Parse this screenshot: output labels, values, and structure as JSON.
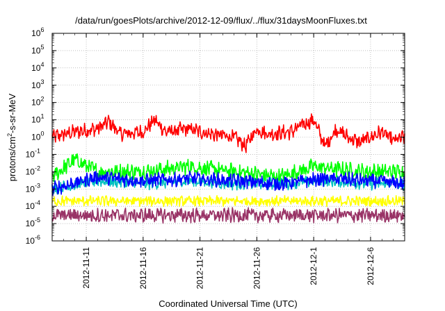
{
  "chart_data": {
    "type": "line",
    "title": "/data/run/goesPlots/archive/2012-12-09/flux/../flux/31daysMoonFluxes.txt",
    "xlabel": "Coordinated Universal Time (UTC)",
    "ylabel_base": "protons/cm",
    "ylabel_exp": "2",
    "ylabel_rest": "-s-sr-MeV",
    "yscale": "log",
    "ylim": [
      1e-06,
      1000000.0
    ],
    "y_base": "10",
    "y_exponents": [
      "-6",
      "-5",
      "-4",
      "-3",
      "-2",
      "-1",
      "0",
      "1",
      "2",
      "3",
      "4",
      "5",
      "6"
    ],
    "x_range": [
      "2012-11-08",
      "2012-12-09"
    ],
    "x_ticks": [
      "2012-11-11",
      "2012-11-16",
      "2012-11-21",
      "2012-11-26",
      "2012-12-1",
      "2012-12-6"
    ],
    "grid": true,
    "series": [
      {
        "color": "#ff0000",
        "base_log": 0.2,
        "amp": 0.45,
        "noise": 0.35,
        "points": [
          [
            "2012-11-08",
            1.0
          ],
          [
            "2012-11-10",
            2.0
          ],
          [
            "2012-11-12",
            3.0
          ],
          [
            "2012-11-13",
            8.0
          ],
          [
            "2012-11-14",
            1.5
          ],
          [
            "2012-11-16",
            2.0
          ],
          [
            "2012-11-17",
            10.0
          ],
          [
            "2012-11-18",
            2.0
          ],
          [
            "2012-11-20",
            3.0
          ],
          [
            "2012-11-22",
            1.5
          ],
          [
            "2012-11-24",
            1.0
          ],
          [
            "2012-11-25",
            0.3
          ],
          [
            "2012-11-26",
            3.0
          ],
          [
            "2012-11-27",
            1.5
          ],
          [
            "2012-11-29",
            2.0
          ],
          [
            "2012-11-30",
            5.0
          ],
          [
            "2012-12-01",
            10.0
          ],
          [
            "2012-12-02",
            0.3
          ],
          [
            "2012-12-03",
            3.0
          ],
          [
            "2012-12-04",
            1.0
          ],
          [
            "2012-12-05",
            0.5
          ],
          [
            "2012-12-06",
            1.0
          ],
          [
            "2012-12-07",
            2.0
          ],
          [
            "2012-12-08",
            0.6
          ],
          [
            "2012-12-09",
            1.0
          ]
        ]
      },
      {
        "color": "#00ff00",
        "base_log": -1.9,
        "amp": 0.4,
        "noise": 0.4,
        "points": [
          [
            "2012-11-08",
            0.005
          ],
          [
            "2012-11-10",
            0.05
          ],
          [
            "2012-11-12",
            0.01
          ],
          [
            "2012-11-16",
            0.01
          ],
          [
            "2012-11-20",
            0.02
          ],
          [
            "2012-11-24",
            0.01
          ],
          [
            "2012-11-28",
            0.005
          ],
          [
            "2012-12-01",
            0.02
          ],
          [
            "2012-12-05",
            0.01
          ],
          [
            "2012-12-09",
            0.01
          ]
        ]
      },
      {
        "color": "#00c0c0",
        "base_log": -2.6,
        "amp": 0.3,
        "noise": 0.3,
        "points": [
          [
            "2012-11-08",
            0.001
          ],
          [
            "2012-11-12",
            0.003
          ],
          [
            "2012-11-16",
            0.002
          ],
          [
            "2012-11-20",
            0.003
          ],
          [
            "2012-11-24",
            0.002
          ],
          [
            "2012-11-28",
            0.002
          ],
          [
            "2012-12-02",
            0.003
          ],
          [
            "2012-12-06",
            0.002
          ],
          [
            "2012-12-09",
            0.002
          ]
        ]
      },
      {
        "color": "#0000ff",
        "base_log": -2.4,
        "amp": 0.35,
        "noise": 0.35,
        "points": [
          [
            "2012-11-08",
            0.001
          ],
          [
            "2012-11-12",
            0.005
          ],
          [
            "2012-11-16",
            0.003
          ],
          [
            "2012-11-20",
            0.004
          ],
          [
            "2012-11-24",
            0.003
          ],
          [
            "2012-11-28",
            0.002
          ],
          [
            "2012-12-02",
            0.004
          ],
          [
            "2012-12-06",
            0.003
          ],
          [
            "2012-12-09",
            0.002
          ]
        ]
      },
      {
        "color": "#ffff00",
        "base_log": -3.7,
        "amp": 0.25,
        "noise": 0.25,
        "points": [
          [
            "2012-11-08",
            0.0002
          ],
          [
            "2012-11-14",
            0.0002
          ],
          [
            "2012-11-20",
            0.0002
          ],
          [
            "2012-11-26",
            0.0002
          ],
          [
            "2012-12-02",
            0.0002
          ],
          [
            "2012-12-09",
            0.0002
          ]
        ]
      },
      {
        "color": "#993366",
        "base_log": -4.5,
        "amp": 0.35,
        "noise": 0.35,
        "points": [
          [
            "2012-11-08",
            3e-05
          ],
          [
            "2012-11-14",
            3e-05
          ],
          [
            "2012-11-20",
            3e-05
          ],
          [
            "2012-11-26",
            3e-05
          ],
          [
            "2012-12-02",
            3e-05
          ],
          [
            "2012-12-09",
            3e-05
          ]
        ]
      }
    ]
  }
}
